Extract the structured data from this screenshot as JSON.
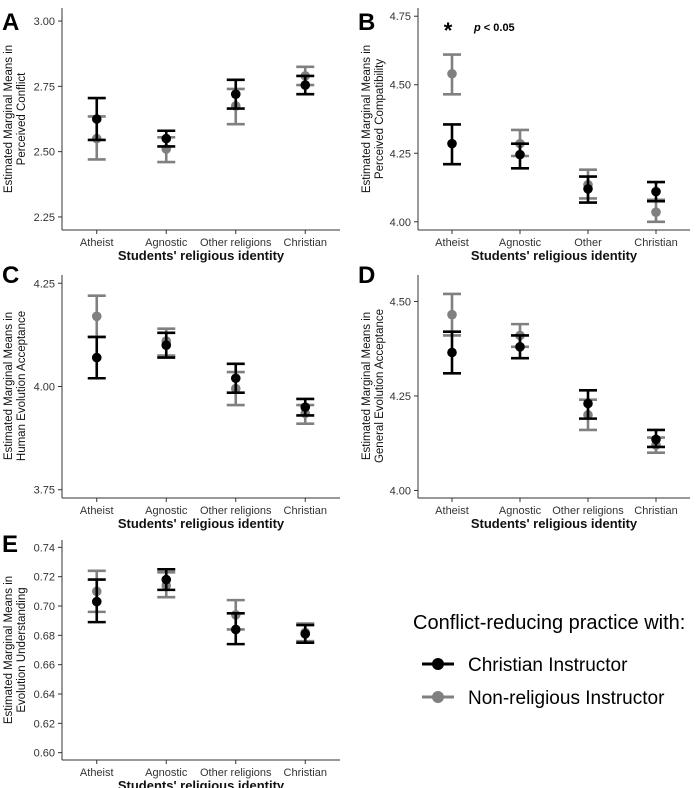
{
  "chart_data": [
    {
      "panel": "A",
      "type": "scatter",
      "title": "",
      "categories": [
        "Atheist",
        "Agnostic",
        "Other religions",
        "Christian"
      ],
      "xlabel": "Students' religious identity",
      "ylabel_lines": [
        "Estimated Marginal Means in",
        "Perceived Conflict"
      ],
      "ylim": [
        2.2,
        3.05
      ],
      "yticks": [
        2.25,
        2.5,
        2.75,
        3.0
      ],
      "ytick_labels": [
        "2.25",
        "2.50",
        "2.75",
        "3.00"
      ],
      "series": [
        {
          "name": "Christian Instructor",
          "values": [
            2.625,
            2.55,
            2.72,
            2.755
          ],
          "lower": [
            2.545,
            2.52,
            2.665,
            2.72
          ],
          "upper": [
            2.705,
            2.58,
            2.775,
            2.79
          ]
        },
        {
          "name": "Non-religious Instructor",
          "values": [
            2.55,
            2.51,
            2.675,
            2.79
          ],
          "lower": [
            2.47,
            2.46,
            2.605,
            2.755
          ],
          "upper": [
            2.635,
            2.555,
            2.74,
            2.825
          ]
        }
      ]
    },
    {
      "panel": "B",
      "type": "scatter",
      "title": "",
      "categories": [
        "Atheist",
        "Agnostic",
        "Other",
        "Christian"
      ],
      "xlabel": "Students' religious identity",
      "ylabel_lines": [
        "Estimated Marginal Means in",
        "Perceived Compatibility"
      ],
      "ylim": [
        3.97,
        4.78
      ],
      "yticks": [
        4.0,
        4.25,
        4.5,
        4.75
      ],
      "ytick_labels": [
        "4.00",
        "4.25",
        "4.50",
        "4.75"
      ],
      "annotation_star": "*",
      "annotation_text": "p < 0.05",
      "series": [
        {
          "name": "Christian Instructor",
          "values": [
            4.285,
            4.245,
            4.12,
            4.11
          ],
          "lower": [
            4.21,
            4.195,
            4.07,
            4.075
          ],
          "upper": [
            4.355,
            4.285,
            4.165,
            4.145
          ]
        },
        {
          "name": "Non-religious Instructor",
          "values": [
            4.54,
            4.285,
            4.135,
            4.035
          ],
          "lower": [
            4.465,
            4.24,
            4.085,
            4.0
          ],
          "upper": [
            4.61,
            4.335,
            4.19,
            4.08
          ]
        }
      ]
    },
    {
      "panel": "C",
      "type": "scatter",
      "title": "",
      "categories": [
        "Atheist",
        "Agnostic",
        "Other religions",
        "Christian"
      ],
      "xlabel": "Students' religious identity",
      "ylabel_lines": [
        "Estimated Marginal Means in",
        "Human Evolution Acceptance"
      ],
      "ylim": [
        3.73,
        4.27
      ],
      "yticks": [
        3.75,
        4.0,
        4.25
      ],
      "ytick_labels": [
        "3.75",
        "4.00",
        "4.25"
      ],
      "series": [
        {
          "name": "Christian Instructor",
          "values": [
            4.07,
            4.1,
            4.02,
            3.95
          ],
          "lower": [
            4.02,
            4.07,
            3.985,
            3.93
          ],
          "upper": [
            4.12,
            4.13,
            4.055,
            3.97
          ]
        },
        {
          "name": "Non-religious Instructor",
          "values": [
            4.17,
            4.11,
            3.995,
            3.935
          ],
          "lower": [
            4.12,
            4.075,
            3.955,
            3.91
          ],
          "upper": [
            4.22,
            4.14,
            4.035,
            3.955
          ]
        }
      ]
    },
    {
      "panel": "D",
      "type": "scatter",
      "title": "",
      "categories": [
        "Atheist",
        "Agnostic",
        "Other religions",
        "Christian"
      ],
      "xlabel": "Students' religious identity",
      "ylabel_lines": [
        "Estimated Marginal Means in",
        "General Evolution Acceptance"
      ],
      "ylim": [
        3.98,
        4.57
      ],
      "yticks": [
        4.0,
        4.25,
        4.5
      ],
      "ytick_labels": [
        "4.00",
        "4.25",
        "4.50"
      ],
      "series": [
        {
          "name": "Christian Instructor",
          "values": [
            4.365,
            4.38,
            4.23,
            4.135
          ],
          "lower": [
            4.31,
            4.35,
            4.19,
            4.115
          ],
          "upper": [
            4.42,
            4.41,
            4.265,
            4.16
          ]
        },
        {
          "name": "Non-religious Instructor",
          "values": [
            4.465,
            4.41,
            4.2,
            4.12
          ],
          "lower": [
            4.41,
            4.38,
            4.16,
            4.1
          ],
          "upper": [
            4.52,
            4.44,
            4.24,
            4.14
          ]
        }
      ]
    },
    {
      "panel": "E",
      "type": "scatter",
      "title": "",
      "categories": [
        "Atheist",
        "Agnostic",
        "Other religions",
        "Christian"
      ],
      "xlabel": "Students' religious identity",
      "ylabel_lines": [
        "Estimated Marginal Means in",
        "Evolution Understanding"
      ],
      "ylim": [
        0.595,
        0.745
      ],
      "yticks": [
        0.6,
        0.62,
        0.64,
        0.66,
        0.68,
        0.7,
        0.72,
        0.74
      ],
      "ytick_labels": [
        "0.60",
        "0.62",
        "0.64",
        "0.66",
        "0.68",
        "0.70",
        "0.72",
        "0.74"
      ],
      "series": [
        {
          "name": "Christian Instructor",
          "values": [
            0.703,
            0.718,
            0.684,
            0.681
          ],
          "lower": [
            0.689,
            0.711,
            0.674,
            0.675
          ],
          "upper": [
            0.718,
            0.725,
            0.695,
            0.687
          ]
        },
        {
          "name": "Non-religious Instructor",
          "values": [
            0.71,
            0.714,
            0.694,
            0.682
          ],
          "lower": [
            0.696,
            0.706,
            0.684,
            0.676
          ],
          "upper": [
            0.724,
            0.723,
            0.704,
            0.688
          ]
        }
      ]
    }
  ],
  "colors": {
    "christian": "#000000",
    "nonreligious": "#808080",
    "axis": "#333333"
  },
  "legend": {
    "title": "Conflict-reducing practice with:",
    "items": [
      {
        "label": "Christian Instructor",
        "color_key": "christian"
      },
      {
        "label": "Non-religious Instructor",
        "color_key": "nonreligious"
      }
    ]
  }
}
